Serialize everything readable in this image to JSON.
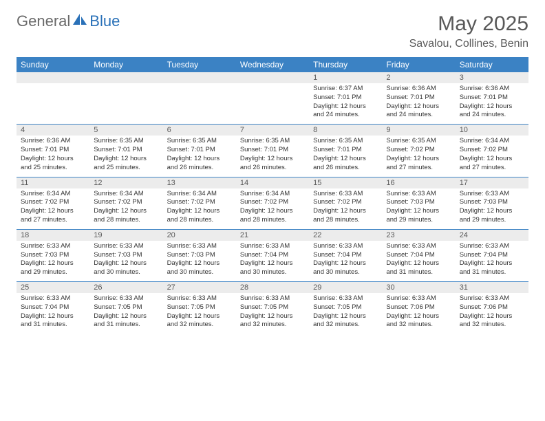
{
  "logo": {
    "general": "General",
    "blue": "Blue"
  },
  "title": "May 2025",
  "location": "Savalou, Collines, Benin",
  "colors": {
    "header_bg": "#3b82c4",
    "header_text": "#ffffff",
    "daynum_bg": "#ececec",
    "text_gray": "#595959",
    "border": "#3b82c4"
  },
  "day_headers": [
    "Sunday",
    "Monday",
    "Tuesday",
    "Wednesday",
    "Thursday",
    "Friday",
    "Saturday"
  ],
  "weeks": [
    [
      null,
      null,
      null,
      null,
      {
        "num": "1",
        "sunrise": "6:37 AM",
        "sunset": "7:01 PM",
        "daylight": "12 hours and 24 minutes."
      },
      {
        "num": "2",
        "sunrise": "6:36 AM",
        "sunset": "7:01 PM",
        "daylight": "12 hours and 24 minutes."
      },
      {
        "num": "3",
        "sunrise": "6:36 AM",
        "sunset": "7:01 PM",
        "daylight": "12 hours and 24 minutes."
      }
    ],
    [
      {
        "num": "4",
        "sunrise": "6:36 AM",
        "sunset": "7:01 PM",
        "daylight": "12 hours and 25 minutes."
      },
      {
        "num": "5",
        "sunrise": "6:35 AM",
        "sunset": "7:01 PM",
        "daylight": "12 hours and 25 minutes."
      },
      {
        "num": "6",
        "sunrise": "6:35 AM",
        "sunset": "7:01 PM",
        "daylight": "12 hours and 26 minutes."
      },
      {
        "num": "7",
        "sunrise": "6:35 AM",
        "sunset": "7:01 PM",
        "daylight": "12 hours and 26 minutes."
      },
      {
        "num": "8",
        "sunrise": "6:35 AM",
        "sunset": "7:01 PM",
        "daylight": "12 hours and 26 minutes."
      },
      {
        "num": "9",
        "sunrise": "6:35 AM",
        "sunset": "7:02 PM",
        "daylight": "12 hours and 27 minutes."
      },
      {
        "num": "10",
        "sunrise": "6:34 AM",
        "sunset": "7:02 PM",
        "daylight": "12 hours and 27 minutes."
      }
    ],
    [
      {
        "num": "11",
        "sunrise": "6:34 AM",
        "sunset": "7:02 PM",
        "daylight": "12 hours and 27 minutes."
      },
      {
        "num": "12",
        "sunrise": "6:34 AM",
        "sunset": "7:02 PM",
        "daylight": "12 hours and 28 minutes."
      },
      {
        "num": "13",
        "sunrise": "6:34 AM",
        "sunset": "7:02 PM",
        "daylight": "12 hours and 28 minutes."
      },
      {
        "num": "14",
        "sunrise": "6:34 AM",
        "sunset": "7:02 PM",
        "daylight": "12 hours and 28 minutes."
      },
      {
        "num": "15",
        "sunrise": "6:33 AM",
        "sunset": "7:02 PM",
        "daylight": "12 hours and 28 minutes."
      },
      {
        "num": "16",
        "sunrise": "6:33 AM",
        "sunset": "7:03 PM",
        "daylight": "12 hours and 29 minutes."
      },
      {
        "num": "17",
        "sunrise": "6:33 AM",
        "sunset": "7:03 PM",
        "daylight": "12 hours and 29 minutes."
      }
    ],
    [
      {
        "num": "18",
        "sunrise": "6:33 AM",
        "sunset": "7:03 PM",
        "daylight": "12 hours and 29 minutes."
      },
      {
        "num": "19",
        "sunrise": "6:33 AM",
        "sunset": "7:03 PM",
        "daylight": "12 hours and 30 minutes."
      },
      {
        "num": "20",
        "sunrise": "6:33 AM",
        "sunset": "7:03 PM",
        "daylight": "12 hours and 30 minutes."
      },
      {
        "num": "21",
        "sunrise": "6:33 AM",
        "sunset": "7:04 PM",
        "daylight": "12 hours and 30 minutes."
      },
      {
        "num": "22",
        "sunrise": "6:33 AM",
        "sunset": "7:04 PM",
        "daylight": "12 hours and 30 minutes."
      },
      {
        "num": "23",
        "sunrise": "6:33 AM",
        "sunset": "7:04 PM",
        "daylight": "12 hours and 31 minutes."
      },
      {
        "num": "24",
        "sunrise": "6:33 AM",
        "sunset": "7:04 PM",
        "daylight": "12 hours and 31 minutes."
      }
    ],
    [
      {
        "num": "25",
        "sunrise": "6:33 AM",
        "sunset": "7:04 PM",
        "daylight": "12 hours and 31 minutes."
      },
      {
        "num": "26",
        "sunrise": "6:33 AM",
        "sunset": "7:05 PM",
        "daylight": "12 hours and 31 minutes."
      },
      {
        "num": "27",
        "sunrise": "6:33 AM",
        "sunset": "7:05 PM",
        "daylight": "12 hours and 32 minutes."
      },
      {
        "num": "28",
        "sunrise": "6:33 AM",
        "sunset": "7:05 PM",
        "daylight": "12 hours and 32 minutes."
      },
      {
        "num": "29",
        "sunrise": "6:33 AM",
        "sunset": "7:05 PM",
        "daylight": "12 hours and 32 minutes."
      },
      {
        "num": "30",
        "sunrise": "6:33 AM",
        "sunset": "7:06 PM",
        "daylight": "12 hours and 32 minutes."
      },
      {
        "num": "31",
        "sunrise": "6:33 AM",
        "sunset": "7:06 PM",
        "daylight": "12 hours and 32 minutes."
      }
    ]
  ],
  "labels": {
    "sunrise": "Sunrise:",
    "sunset": "Sunset:",
    "daylight": "Daylight:"
  }
}
